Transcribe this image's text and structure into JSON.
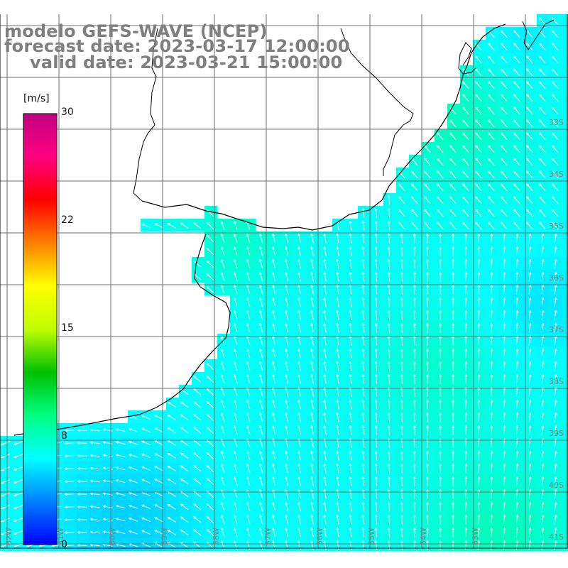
{
  "title": {
    "line1": "modelo GEFS-WAVE (NCEP)",
    "line2": "forecast date: 2023-03-17 12:00:00",
    "line3": "valid date: 2023-03-21 15:00:00"
  },
  "colorbar": {
    "unit": "[m/s]",
    "ticks": [
      "30",
      "22",
      "15",
      "8",
      "0"
    ],
    "tick_values": [
      30,
      22,
      15,
      8,
      0
    ],
    "min": 0,
    "max": 30,
    "colors": [
      "#0000ff",
      "#0080ff",
      "#00ffff",
      "#00ff80",
      "#00c000",
      "#c0ff00",
      "#ffff00",
      "#ff8000",
      "#ff0000",
      "#ff0080",
      "#c0007f"
    ]
  },
  "lat_labels": [
    "33S",
    "34S",
    "35S",
    "36S",
    "37S",
    "38S",
    "39S",
    "40S",
    "41S"
  ],
  "lon_labels": [
    "62W",
    "61W",
    "60W",
    "59W",
    "58W",
    "57W",
    "56W",
    "55W",
    "54W",
    "53W"
  ],
  "field_colors": {
    "land": "#ffffff",
    "coast": "#000000",
    "grid": "#6e6e6e",
    "arrow": "#ffffff",
    "label": "#7f7f7f"
  }
}
